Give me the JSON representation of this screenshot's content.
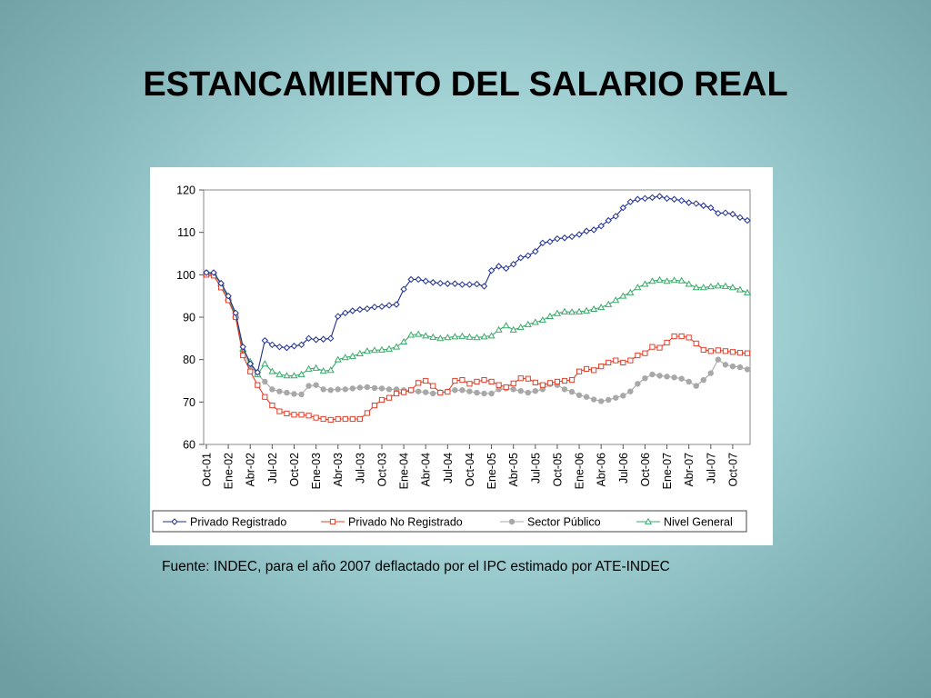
{
  "slide": {
    "title": "ESTANCAMIENTO DEL SALARIO REAL",
    "source": "Fuente: INDEC, para el año 2007 deflactado por el IPC estimado por ATE-INDEC"
  },
  "chart_data": {
    "type": "line",
    "title": "",
    "xlabel": "",
    "ylabel": "",
    "ylim": [
      60,
      120
    ],
    "yticks": [
      60,
      70,
      80,
      90,
      100,
      110,
      120
    ],
    "grid": false,
    "legend_position": "bottom",
    "x_start": "Oct-01",
    "x_end": "Nov-07",
    "x_tick_labels": [
      "Oct-01",
      "Ene-02",
      "Abr-02",
      "Jul-02",
      "Oct-02",
      "Ene-03",
      "Abr-03",
      "Jul-03",
      "Oct-03",
      "Ene-04",
      "Abr-04",
      "Jul-04",
      "Oct-04",
      "Ene-05",
      "Abr-05",
      "Jul-05",
      "Oct-05",
      "Ene-06",
      "Abr-06",
      "Jul-06",
      "Oct-06",
      "Ene-07",
      "Abr-07",
      "Jul-07",
      "Oct-07"
    ],
    "series": [
      {
        "name": "Privado Registrado",
        "color": "#1f2f8f",
        "marker": "diamond",
        "values": [
          100.5,
          100.5,
          98,
          95,
          91,
          83,
          79,
          77,
          84.5,
          83.5,
          83,
          82.8,
          83.2,
          83.5,
          85,
          84.7,
          84.8,
          85,
          90.2,
          91,
          91.5,
          91.8,
          92,
          92.4,
          92.5,
          92.8,
          93,
          96.6,
          98.9,
          98.9,
          98.5,
          98.2,
          98,
          97.9,
          97.9,
          97.7,
          97.7,
          97.8,
          97.3,
          101,
          102,
          101.5,
          102.5,
          104,
          104.5,
          105.5,
          107.5,
          107.8,
          108.5,
          108.7,
          109,
          109.5,
          110.3,
          110.6,
          111.5,
          112.8,
          113.8,
          115.8,
          117.2,
          117.8,
          118,
          118.2,
          118.5,
          118,
          117.8,
          117.5,
          117,
          116.8,
          116.3,
          115.8,
          114.5,
          114.6,
          114.3,
          113.5,
          112.8
        ]
      },
      {
        "name": "Privado No Registrado",
        "color": "#e0402a",
        "marker": "square",
        "values": [
          100,
          99.8,
          97,
          94,
          90,
          81,
          77.2,
          74,
          71.2,
          69.2,
          67.8,
          67.3,
          67,
          67,
          66.8,
          66.3,
          66,
          65.8,
          66,
          66,
          66,
          66,
          67.4,
          69.2,
          70.5,
          71,
          72,
          72.3,
          72.8,
          74.5,
          75,
          73.8,
          72.2,
          72.4,
          75,
          75.2,
          74.3,
          74.8,
          75.2,
          74.8,
          74,
          73.5,
          74.4,
          75.6,
          75.5,
          74.6,
          74,
          74.5,
          74.8,
          75,
          75.2,
          77.2,
          77.8,
          77.5,
          78.4,
          79.3,
          79.8,
          79.3,
          79.8,
          81,
          81.5,
          83,
          82.8,
          84,
          85.5,
          85.5,
          85.2,
          83.8,
          82.3,
          82,
          82.2,
          82,
          81.8,
          81.6,
          81.5
        ]
      },
      {
        "name": "Sector Público",
        "color": "#a8a8a8",
        "marker": "circle",
        "values": [
          100.5,
          100,
          97.8,
          94,
          90,
          82,
          78.5,
          76.5,
          74.8,
          73,
          72.5,
          72.2,
          71.9,
          71.8,
          73.8,
          74,
          73,
          72.8,
          73,
          73,
          73.2,
          73.4,
          73.5,
          73.3,
          73.2,
          73,
          73,
          72.8,
          72.7,
          72.5,
          72.3,
          72,
          72.3,
          72.5,
          72.8,
          72.8,
          72.5,
          72.2,
          72,
          72,
          73,
          73.2,
          73,
          72.6,
          72.2,
          72.6,
          73,
          74.2,
          74,
          73,
          72.4,
          71.6,
          71.2,
          70.6,
          70.2,
          70.5,
          71,
          71.5,
          72.5,
          74.3,
          75.6,
          76.5,
          76.2,
          76,
          75.8,
          75.5,
          74.8,
          73.8,
          75.2,
          76.8,
          80,
          78.8,
          78.4,
          78.2,
          77.7
        ]
      },
      {
        "name": "Nivel General",
        "color": "#3aaa6a",
        "marker": "triangle",
        "values": [
          100.2,
          100.3,
          98,
          94.5,
          90.5,
          82.5,
          79.5,
          76.5,
          79,
          77.2,
          76.5,
          76.2,
          76.2,
          76.5,
          77.8,
          78,
          77.3,
          77.5,
          80,
          80.5,
          80.8,
          81.4,
          82,
          82.2,
          82.3,
          82.5,
          83,
          84.2,
          85.8,
          86,
          85.6,
          85.3,
          85,
          85.2,
          85.4,
          85.5,
          85.3,
          85.2,
          85.4,
          85.6,
          87,
          88,
          87,
          87.6,
          88.3,
          88.8,
          89.3,
          90.2,
          90.9,
          91.3,
          91.2,
          91.3,
          91.5,
          91.9,
          92.3,
          93,
          94,
          95,
          95.8,
          97,
          97.8,
          98.5,
          98.8,
          98.5,
          98.7,
          98.6,
          97.8,
          97,
          97,
          97.2,
          97.4,
          97.3,
          97,
          96.5,
          95.8
        ]
      }
    ]
  }
}
